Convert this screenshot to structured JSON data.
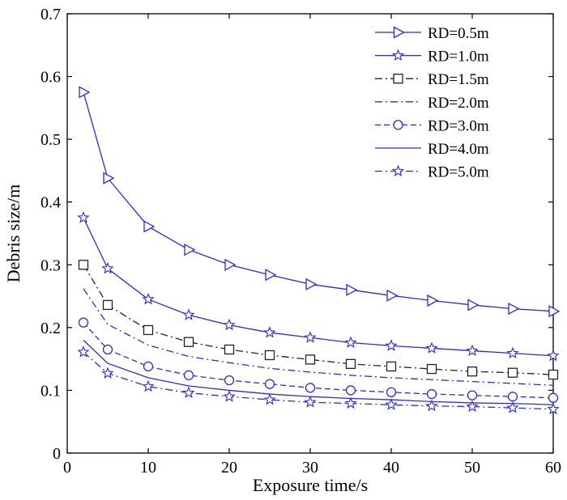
{
  "chart_data": {
    "type": "line",
    "title": "",
    "xlabel": "Exposure time/s",
    "ylabel": "Debris size/m",
    "xlim": [
      0,
      60
    ],
    "ylim": [
      0,
      0.7
    ],
    "xticks": [
      0,
      10,
      20,
      30,
      40,
      50,
      60
    ],
    "yticks": [
      0,
      0.1,
      0.2,
      0.3,
      0.4,
      0.5,
      0.6,
      0.7
    ],
    "xtick_labels": [
      "0",
      "10",
      "20",
      "30",
      "40",
      "50",
      "60"
    ],
    "ytick_labels": [
      "0",
      "0.1",
      "0.2",
      "0.3",
      "0.4",
      "0.5",
      "0.6",
      "0.7"
    ],
    "grid": false,
    "legend_position": "top-right",
    "x": [
      2,
      5,
      10,
      15,
      20,
      25,
      30,
      35,
      40,
      45,
      50,
      55,
      60
    ],
    "series": [
      {
        "name": "RD=0.5m",
        "marker": "triangle-right",
        "line": "solid",
        "color": "#2b2bd9",
        "values": [
          0.575,
          0.438,
          0.361,
          0.324,
          0.3,
          0.284,
          0.269,
          0.26,
          0.251,
          0.243,
          0.236,
          0.23,
          0.226
        ]
      },
      {
        "name": "RD=1.0m",
        "marker": "star",
        "line": "solid",
        "color": "#2b2bd9",
        "values": [
          0.375,
          0.294,
          0.245,
          0.22,
          0.204,
          0.192,
          0.184,
          0.176,
          0.171,
          0.167,
          0.163,
          0.159,
          0.155
        ]
      },
      {
        "name": "RD=1.5m",
        "marker": "square",
        "line": "dashdot",
        "color": "#222222",
        "values": [
          0.3,
          0.236,
          0.196,
          0.177,
          0.165,
          0.156,
          0.149,
          0.142,
          0.138,
          0.134,
          0.13,
          0.128,
          0.125
        ]
      },
      {
        "name": "RD=2.0m",
        "marker": "none",
        "line": "dashdot",
        "color": "#2b2bd9",
        "values": [
          0.262,
          0.205,
          0.172,
          0.154,
          0.144,
          0.135,
          0.129,
          0.124,
          0.12,
          0.117,
          0.114,
          0.111,
          0.108
        ]
      },
      {
        "name": "RD=3.0m",
        "marker": "circle",
        "line": "dashed",
        "color": "#2b2bd9",
        "values": [
          0.208,
          0.165,
          0.138,
          0.124,
          0.116,
          0.11,
          0.104,
          0.1,
          0.097,
          0.094,
          0.092,
          0.09,
          0.088
        ]
      },
      {
        "name": "RD=4.0m",
        "marker": "none",
        "line": "solid",
        "color": "#2b2bd9",
        "values": [
          0.18,
          0.143,
          0.12,
          0.107,
          0.1,
          0.094,
          0.09,
          0.087,
          0.085,
          0.082,
          0.08,
          0.079,
          0.077
        ]
      },
      {
        "name": "RD=5.0m",
        "marker": "star",
        "line": "dashdot",
        "color": "#2b2bd9",
        "values": [
          0.161,
          0.127,
          0.106,
          0.096,
          0.09,
          0.085,
          0.081,
          0.079,
          0.077,
          0.075,
          0.074,
          0.072,
          0.07
        ]
      }
    ]
  }
}
